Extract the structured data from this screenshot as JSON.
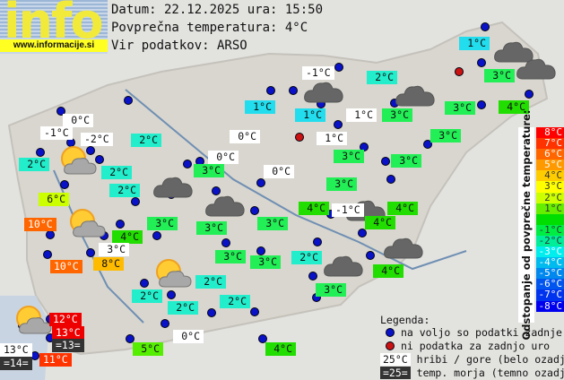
{
  "logo": {
    "word": "info",
    "url": "www.informacije.si"
  },
  "header": {
    "date_line": "Datum: 22.12.2025 ura: 15:50",
    "avg_line": "Povprečna temperatura: 4°C",
    "source_line": "Vir podatkov: ARSO"
  },
  "colors": {
    "station_dot": "#0a12c8",
    "no_data_dot": "#cc1111",
    "mountain_bg": "#ffffff",
    "sea_bg": "#333333"
  },
  "stations": [
    {
      "t": "1°C",
      "bg": "#22ddee"
    },
    {
      "t": "-1°C",
      "bg": "#ffffff"
    },
    {
      "t": "2°C",
      "bg": "#22eecc"
    },
    {
      "t": "3°C",
      "bg": "#22ee55"
    },
    {
      "t": "1°C",
      "bg": "#22ddee"
    },
    {
      "t": "1°C",
      "bg": "#22ddee"
    },
    {
      "t": "1°C",
      "bg": "#ffffff"
    },
    {
      "t": "3°C",
      "bg": "#22ee55"
    },
    {
      "t": "3°C",
      "bg": "#22ee55"
    },
    {
      "t": "4°C",
      "bg": "#22dd00"
    },
    {
      "t": "0°C",
      "bg": "#ffffff"
    },
    {
      "t": "-1°C",
      "bg": "#ffffff"
    },
    {
      "t": "-2°C",
      "bg": "#ffffff"
    },
    {
      "t": "2°C",
      "bg": "#22eecc"
    },
    {
      "t": "0°C",
      "bg": "#ffffff"
    },
    {
      "t": "1°C",
      "bg": "#ffffff"
    },
    {
      "t": "3°C",
      "bg": "#22ee55"
    },
    {
      "t": "2°C",
      "bg": "#22eecc"
    },
    {
      "t": "0°C",
      "bg": "#ffffff"
    },
    {
      "t": "3°C",
      "bg": "#22ee55"
    },
    {
      "t": "3°C",
      "bg": "#22ee55"
    },
    {
      "t": "2°C",
      "bg": "#22eecc"
    },
    {
      "t": "3°C",
      "bg": "#22ee55"
    },
    {
      "t": "0°C",
      "bg": "#ffffff"
    },
    {
      "t": "2°C",
      "bg": "#22eecc"
    },
    {
      "t": "3°C",
      "bg": "#22ee55"
    },
    {
      "t": "6°C",
      "bg": "#ccff00"
    },
    {
      "t": "4°C",
      "bg": "#22dd00"
    },
    {
      "t": "-1°C",
      "bg": "#ffffff"
    },
    {
      "t": "4°C",
      "bg": "#22dd00"
    },
    {
      "t": "3°C",
      "bg": "#22ee55"
    },
    {
      "t": "4°C",
      "bg": "#22dd00"
    },
    {
      "t": "10°C",
      "bg": "#ff6600"
    },
    {
      "t": "3°C",
      "bg": "#22ee55"
    },
    {
      "t": "3°C",
      "bg": "#22ee55"
    },
    {
      "t": "4°C",
      "bg": "#22dd00"
    },
    {
      "t": "3°C",
      "bg": "#ffffff"
    },
    {
      "t": "3°C",
      "bg": "#22ee55"
    },
    {
      "t": "3°C",
      "bg": "#22ee55"
    },
    {
      "t": "2°C",
      "bg": "#22eecc"
    },
    {
      "t": "10°C",
      "bg": "#ff6600"
    },
    {
      "t": "8°C",
      "bg": "#ffbb00"
    },
    {
      "t": "4°C",
      "bg": "#22dd00"
    },
    {
      "t": "2°C",
      "bg": "#22eecc"
    },
    {
      "t": "2°C",
      "bg": "#22eecc"
    },
    {
      "t": "3°C",
      "bg": "#22ee55"
    },
    {
      "t": "2°C",
      "bg": "#22eecc"
    },
    {
      "t": "2°C",
      "bg": "#22eecc"
    },
    {
      "t": "12°C",
      "bg": "#ee0000"
    },
    {
      "t": "13°C",
      "bg": "#ee0000"
    },
    {
      "t": "=13=",
      "bg": "#333333"
    },
    {
      "t": "13°C",
      "bg": "#ffffff"
    },
    {
      "t": "=14=",
      "bg": "#333333"
    },
    {
      "t": "11°C",
      "bg": "#ff3300"
    },
    {
      "t": "0°C",
      "bg": "#ffffff"
    },
    {
      "t": "5°C",
      "bg": "#55ee00"
    },
    {
      "t": "4°C",
      "bg": "#22dd00"
    }
  ],
  "weather_icons": [
    "cloud-icon",
    "cloud-icon",
    "cloud-icon",
    "cloud-icon",
    "cloud-icon",
    "cloud-icon",
    "cloud-icon",
    "cloud-icon",
    "cloud-icon",
    "sun-cloud-icon",
    "sun-cloud-icon",
    "sun-cloud-icon",
    "sun-cloud-icon"
  ],
  "legend": {
    "title": "Legenda:",
    "available": "na voljo so podatki zadnje ure",
    "no_data": "ni podatka za zadnjo uro",
    "mountain_sample": "25°C",
    "mountain_text": "hribi / gore (belo ozadje)",
    "sea_sample": "=25=",
    "sea_text": "temp. morja (temno ozadje)"
  },
  "scale": {
    "title": "Odstopanje od povprečne temperature:",
    "steps": [
      {
        "t": "8°C",
        "c": "#ff0000"
      },
      {
        "t": "7°C",
        "c": "#ff3300"
      },
      {
        "t": "6°C",
        "c": "#ff6600"
      },
      {
        "t": "5°C",
        "c": "#ff9900"
      },
      {
        "t": "4°C",
        "c": "#ffcc00"
      },
      {
        "t": "3°C",
        "c": "#ffff00"
      },
      {
        "t": "2°C",
        "c": "#ccff00"
      },
      {
        "t": "1°C",
        "c": "#66ee00"
      },
      {
        "t": "",
        "c": "#00dd00"
      },
      {
        "t": "-1°C",
        "c": "#00ee44"
      },
      {
        "t": "-2°C",
        "c": "#00ee99"
      },
      {
        "t": "-3°C",
        "c": "#00eeee"
      },
      {
        "t": "-4°C",
        "c": "#00bbee"
      },
      {
        "t": "-5°C",
        "c": "#0088ee"
      },
      {
        "t": "-6°C",
        "c": "#0055ee"
      },
      {
        "t": "-7°C",
        "c": "#0033ee"
      },
      {
        "t": "-8°C",
        "c": "#0000ee"
      }
    ]
  }
}
